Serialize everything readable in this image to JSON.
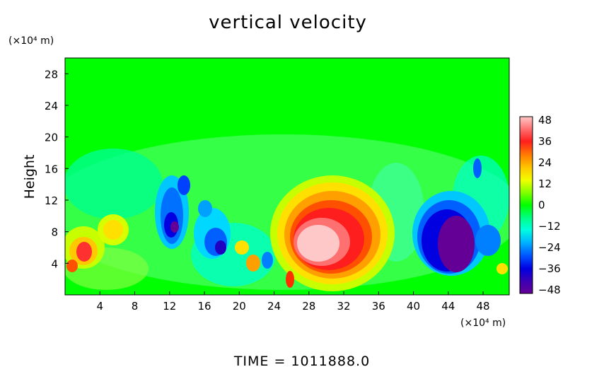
{
  "chart_data": {
    "type": "heatmap",
    "title": "vertical velocity",
    "ylabel": "Height",
    "x_units": "(×10⁴ m)",
    "y_units": "(×10⁴ m)",
    "xlim": [
      0,
      51
    ],
    "ylim": [
      0,
      30
    ],
    "x_ticks": [
      4,
      8,
      12,
      16,
      20,
      24,
      28,
      32,
      36,
      40,
      44,
      48
    ],
    "y_ticks": [
      4,
      8,
      12,
      16,
      20,
      24,
      28
    ],
    "colorbar": {
      "ticks": [
        48,
        36,
        24,
        12,
        0,
        -12,
        -24,
        -36,
        -48
      ],
      "range": [
        -48,
        48
      ]
    },
    "footer": "TIME  =  1011888.0",
    "features": [
      {
        "name": "updraft",
        "x": 30,
        "y": 6,
        "peak": 48
      },
      {
        "name": "downdraft",
        "x": 44.5,
        "y": 5,
        "peak": -48
      },
      {
        "name": "downdraft",
        "x": 12.5,
        "y": 9,
        "peak": -40
      },
      {
        "name": "downdraft",
        "x": 18,
        "y": 5.5,
        "peak": -42
      },
      {
        "name": "updraft",
        "x": 2.5,
        "y": 5.5,
        "peak": 38
      },
      {
        "name": "updraft",
        "x": 6,
        "y": 8,
        "peak": 20
      }
    ]
  }
}
